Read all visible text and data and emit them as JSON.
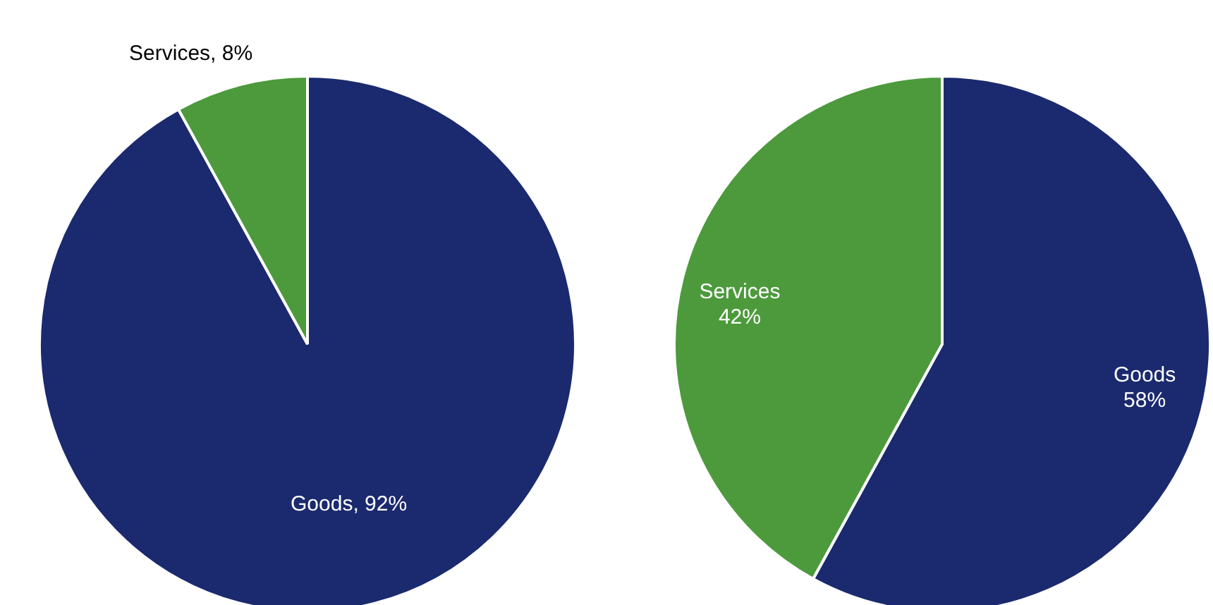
{
  "chart_data": [
    {
      "type": "pie",
      "categories": [
        "Goods",
        "Services"
      ],
      "values": [
        92,
        8
      ],
      "colors": [
        "#1b2a6e",
        "#4c9a3c"
      ],
      "value_labels": [
        "92%",
        "8%"
      ]
    },
    {
      "type": "pie",
      "categories": [
        "Goods",
        "Services"
      ],
      "values": [
        58,
        42
      ],
      "colors": [
        "#1b2a6e",
        "#4c9a3c"
      ],
      "value_labels": [
        "58%",
        "42%"
      ]
    }
  ]
}
